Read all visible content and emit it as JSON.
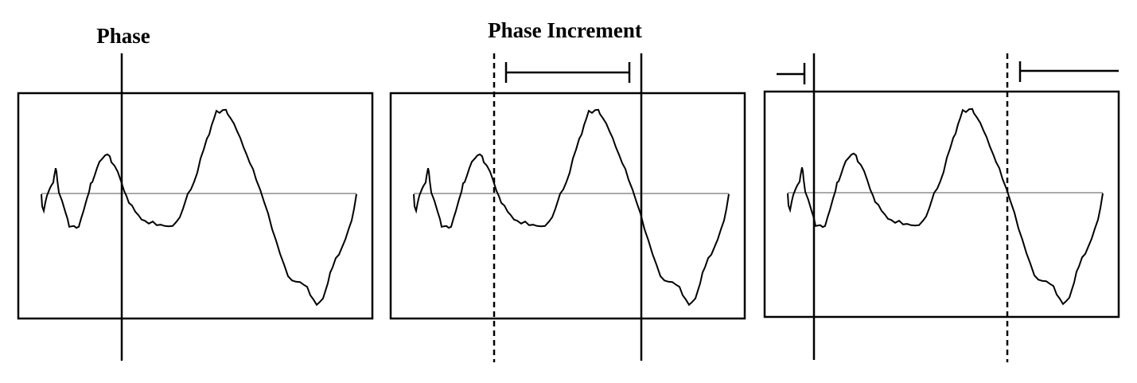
{
  "labels": {
    "phase": "Phase",
    "phase_increment": "Phase Increment"
  },
  "colors": {
    "ink": "#000000",
    "axis": "#555555",
    "background": "#ffffff"
  },
  "panels": [
    {
      "id": "phase",
      "markers": [
        "phase-line"
      ],
      "brackets": []
    },
    {
      "id": "phase-increment",
      "markers": [
        "previous-phase-dashed",
        "new-phase-line"
      ],
      "brackets": [
        "increment-span"
      ]
    },
    {
      "id": "wraparound",
      "markers": [
        "new-phase-line",
        "previous-phase-dashed"
      ],
      "brackets": [
        "span-start-part",
        "span-end-part"
      ]
    }
  ]
}
